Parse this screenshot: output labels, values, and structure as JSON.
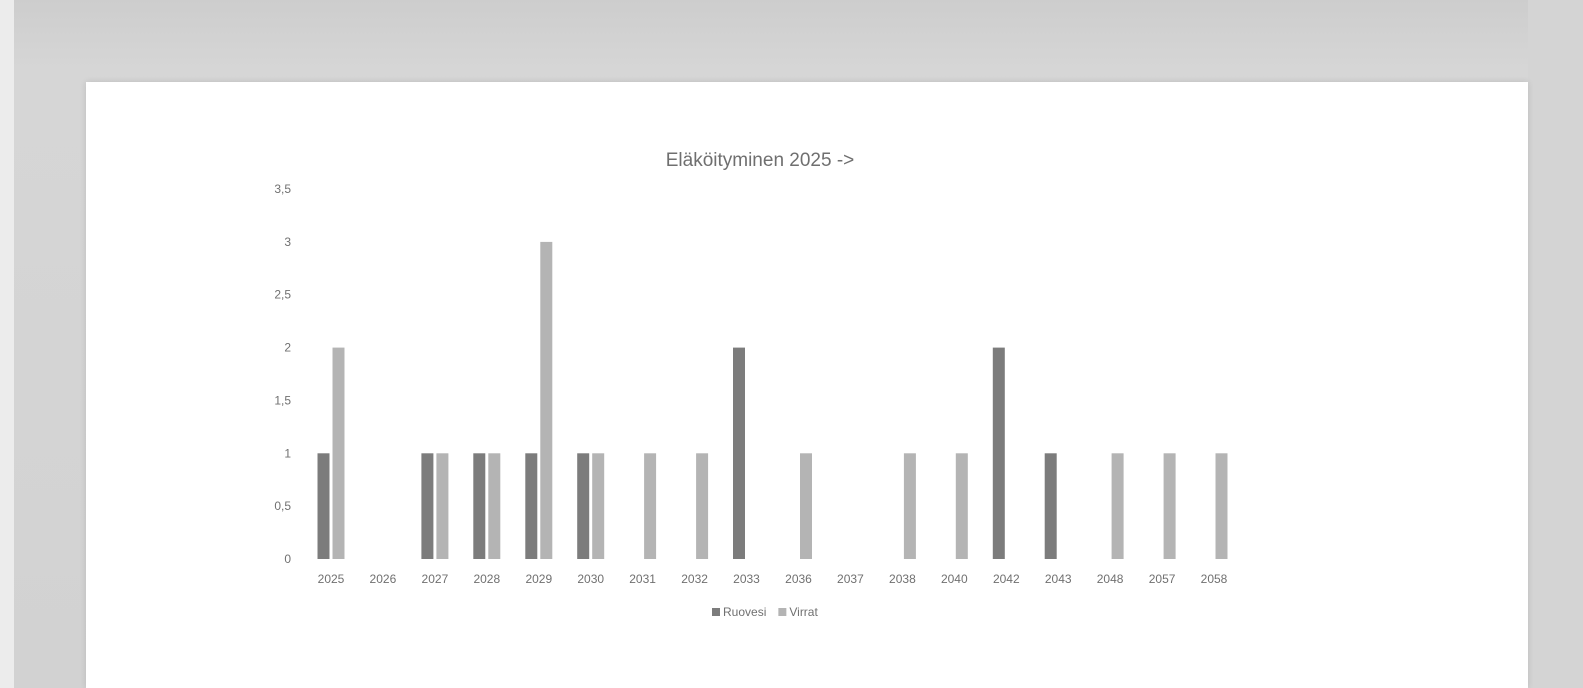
{
  "colors": {
    "ruovesi": "#7c7c7c",
    "virrat": "#b4b4b4"
  },
  "chart_data": {
    "type": "bar",
    "title": "Eläköityminen 2025 ->",
    "xlabel": "",
    "ylabel": "",
    "ylim": [
      0,
      3.5
    ],
    "y_ticks": [
      "0",
      "0,5",
      "1",
      "1,5",
      "2",
      "2,5",
      "3",
      "3,5"
    ],
    "y_tick_values": [
      0,
      0.5,
      1,
      1.5,
      2,
      2.5,
      3,
      3.5
    ],
    "grid": false,
    "legend": "bottom",
    "categories": [
      "2025",
      "2026",
      "2027",
      "2028",
      "2029",
      "2030",
      "2031",
      "2032",
      "2033",
      "2036",
      "2037",
      "2038",
      "2040",
      "2042",
      "2043",
      "2048",
      "2057",
      "2058"
    ],
    "series": [
      {
        "name": "Ruovesi",
        "values": [
          1,
          0,
          1,
          1,
          1,
          1,
          0,
          0,
          2,
          0,
          0,
          0,
          0,
          2,
          1,
          0,
          0,
          0
        ]
      },
      {
        "name": "Virrat",
        "values": [
          2,
          0,
          1,
          1,
          3,
          1,
          1,
          1,
          0,
          1,
          0,
          1,
          1,
          0,
          0,
          1,
          1,
          1
        ]
      }
    ]
  }
}
